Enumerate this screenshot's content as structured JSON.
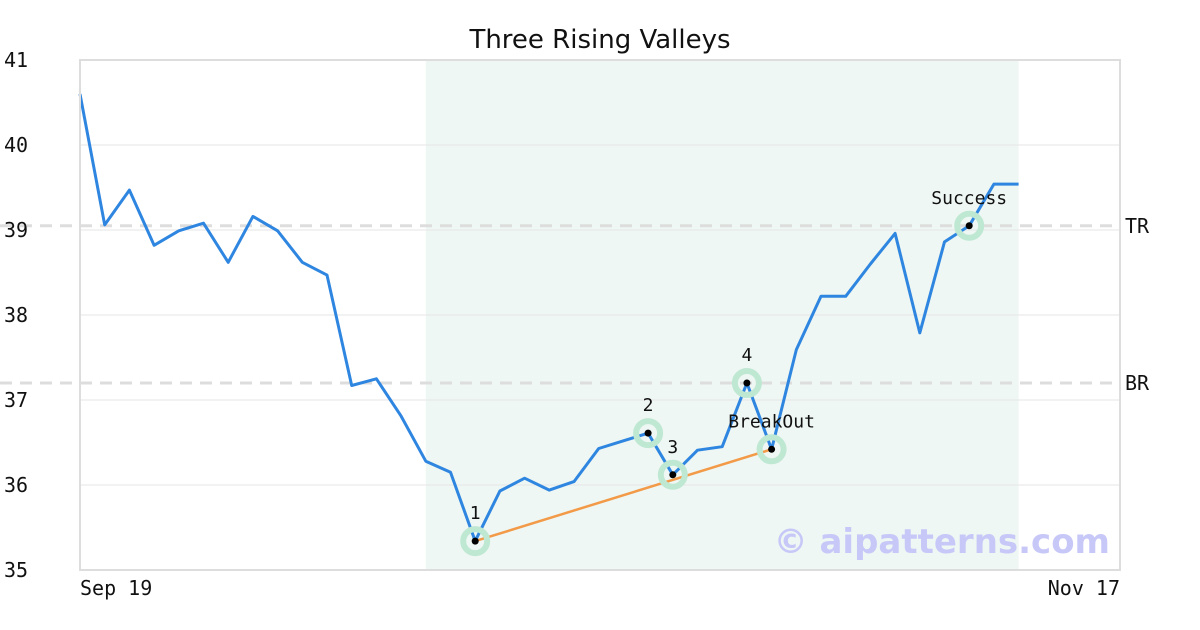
{
  "chart_data": {
    "type": "line",
    "title": "Three Rising Valleys",
    "ylim": [
      35,
      41
    ],
    "yticks": [
      35,
      36,
      37,
      38,
      39,
      40,
      41
    ],
    "x_tick_labels": [
      "Sep 19",
      "Nov 17"
    ],
    "grid": "horizontal",
    "colors": {
      "line": "#2f86e0",
      "trend": "#f29a48",
      "highlight": "#eef7f3",
      "ref_line": "#dddddd",
      "marker_halo": "#bfe8d3",
      "marker_dot": "#000000",
      "frame": "#dddddd",
      "watermark": "#c8c8f8"
    },
    "series": [
      {
        "values": [
          40.6,
          39.06,
          39.47,
          38.82,
          38.99,
          39.08,
          38.62,
          39.16,
          38.99,
          38.62,
          38.47,
          37.17,
          37.25,
          36.81,
          36.28,
          36.15,
          35.34,
          35.93,
          36.08,
          35.94,
          36.04,
          36.43,
          36.52,
          36.61,
          36.12,
          36.41,
          36.45,
          37.2,
          36.42,
          37.59,
          38.22,
          38.22,
          38.6,
          38.96,
          37.79,
          38.86,
          39.05,
          39.54,
          39.54
        ]
      }
    ],
    "highlight_range": {
      "from_index": 14,
      "to_index": 38
    },
    "reference_lines": [
      {
        "label": "TR",
        "value": 39.05
      },
      {
        "label": "BR",
        "value": 37.2
      }
    ],
    "trend_line": {
      "from_index": 16,
      "to_index": 28
    },
    "annotated_points": [
      {
        "index": 16,
        "label": "1"
      },
      {
        "index": 23,
        "label": "2"
      },
      {
        "index": 24,
        "label": "3"
      },
      {
        "index": 27,
        "label": "4"
      },
      {
        "index": 28,
        "label": "BreakOut"
      },
      {
        "index": 36,
        "label": "Success"
      }
    ],
    "watermark": "© aipatterns.com"
  }
}
